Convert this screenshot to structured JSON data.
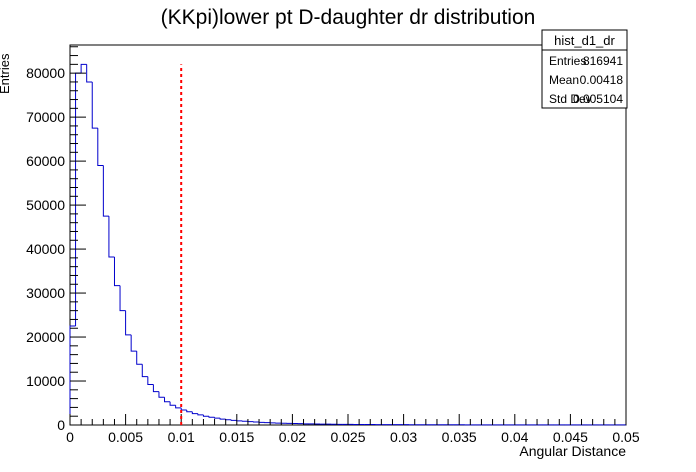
{
  "chart_data": {
    "type": "histogram",
    "title": "(KKpi)lower pt D-daughter dr distribution",
    "x_label": "Angular Distance",
    "y_label": "Entries",
    "color": "#0000cc",
    "bins": [
      0,
      0.0005,
      0.001,
      0.0015,
      0.002,
      0.0025,
      0.003,
      0.0035,
      0.004,
      0.0045,
      0.005,
      0.0055,
      0.006,
      0.0065,
      0.007,
      0.0075,
      0.008,
      0.0085,
      0.009,
      0.0095,
      0.01,
      0.0105,
      0.011,
      0.0115,
      0.012,
      0.0125,
      0.013,
      0.0135,
      0.014,
      0.0145,
      0.015,
      0.0155,
      0.016,
      0.0165,
      0.017,
      0.0175,
      0.018,
      0.0185,
      0.019,
      0.0195,
      0.02,
      0.0205,
      0.021,
      0.0215,
      0.022,
      0.0225,
      0.023,
      0.0235,
      0.024,
      0.0245,
      0.025,
      0.0255,
      0.026,
      0.0265,
      0.027,
      0.0275,
      0.028,
      0.0285,
      0.029,
      0.0295,
      0.03,
      0.0305,
      0.031,
      0.0315,
      0.032,
      0.0325,
      0.033,
      0.0335,
      0.034,
      0.0345,
      0.035,
      0.0355,
      0.036,
      0.0365,
      0.037,
      0.0375,
      0.038,
      0.0385,
      0.039,
      0.0395,
      0.04,
      0.0405,
      0.041,
      0.0415,
      0.042,
      0.0425,
      0.043,
      0.0435,
      0.044,
      0.0445,
      0.045,
      0.0455,
      0.046,
      0.0465,
      0.047,
      0.0475,
      0.048,
      0.0485,
      0.049,
      0.0495,
      0.05
    ],
    "values": [
      22500,
      80000,
      82000,
      78000,
      67500,
      59000,
      47500,
      38200,
      31700,
      26000,
      20500,
      16800,
      13800,
      11000,
      9200,
      7600,
      6300,
      5300,
      4500,
      3900,
      3400,
      3000,
      2600,
      2300,
      2000,
      1750,
      1550,
      1350,
      1200,
      1050,
      950,
      850,
      760,
      680,
      610,
      550,
      490,
      440,
      400,
      360,
      330,
      300,
      270,
      245,
      220,
      200,
      185,
      170,
      155,
      140,
      130,
      122,
      115,
      108,
      102,
      96,
      90,
      85,
      80,
      76,
      72,
      68,
      64,
      61,
      58,
      55,
      52,
      50,
      48,
      46,
      44,
      42,
      40,
      39,
      38,
      37,
      36,
      35,
      34,
      33,
      32,
      31,
      30,
      29,
      28,
      28,
      27,
      27,
      26,
      26,
      25,
      25,
      24,
      24,
      23,
      23,
      22,
      22,
      21,
      21
    ],
    "xlim": [
      0,
      0.05
    ],
    "ylim": [
      0,
      86400
    ],
    "xticks": [
      0,
      0.005,
      0.01,
      0.015,
      0.02,
      0.025,
      0.03,
      0.035,
      0.04,
      0.045,
      0.05
    ],
    "yticks": [
      0,
      10000,
      20000,
      30000,
      40000,
      50000,
      60000,
      70000,
      80000
    ],
    "reference_line": {
      "x": 0.01,
      "y_top": 82000,
      "color": "#ff0000"
    },
    "stats_box": {
      "name": "hist_d1_dr",
      "rows": [
        [
          "Entries",
          816941
        ],
        [
          "Mean",
          0.00418
        ],
        [
          "Std Dev",
          0.005104
        ]
      ]
    }
  }
}
